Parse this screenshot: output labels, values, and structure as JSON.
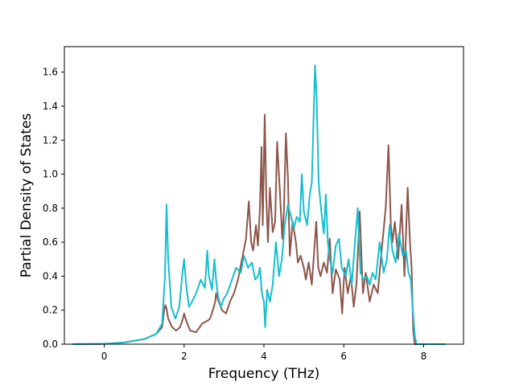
{
  "chart_data": {
    "type": "line",
    "title": "",
    "xlabel": "Frequency (THz)",
    "ylabel": "Partial Density of States",
    "xlim": [
      -1.0,
      9.0
    ],
    "ylim": [
      0.0,
      1.75
    ],
    "xticks": [
      0,
      2,
      4,
      6,
      8
    ],
    "xtick_labels": [
      "0",
      "2",
      "4",
      "6",
      "8"
    ],
    "yticks": [
      0.0,
      0.2,
      0.4,
      0.6,
      0.8,
      1.0,
      1.2,
      1.4,
      1.6
    ],
    "ytick_labels": [
      "0.0",
      "0.2",
      "0.4",
      "0.6",
      "0.8",
      "1.0",
      "1.2",
      "1.4",
      "1.6"
    ],
    "grid": false,
    "legend": "none",
    "series": [
      {
        "color": "#8c564b",
        "x": [
          -0.8,
          0.0,
          0.5,
          1.0,
          1.3,
          1.45,
          1.5,
          1.53,
          1.56,
          1.6,
          1.7,
          1.8,
          1.9,
          1.97,
          2.0,
          2.05,
          2.15,
          2.3,
          2.45,
          2.6,
          2.65,
          2.72,
          2.78,
          2.8,
          2.85,
          2.95,
          3.05,
          3.15,
          3.25,
          3.35,
          3.45,
          3.55,
          3.62,
          3.68,
          3.73,
          3.8,
          3.85,
          3.9,
          3.94,
          3.97,
          4.02,
          4.06,
          4.1,
          4.15,
          4.22,
          4.28,
          4.33,
          4.4,
          4.46,
          4.5,
          4.55,
          4.6,
          4.65,
          4.72,
          4.8,
          4.85,
          4.92,
          5.0,
          5.05,
          5.12,
          5.2,
          5.26,
          5.31,
          5.36,
          5.42,
          5.5,
          5.58,
          5.65,
          5.72,
          5.8,
          5.9,
          5.96,
          6.02,
          6.1,
          6.18,
          6.25,
          6.32,
          6.4,
          6.48,
          6.55,
          6.65,
          6.75,
          6.85,
          6.95,
          7.05,
          7.12,
          7.18,
          7.22,
          7.28,
          7.36,
          7.45,
          7.52,
          7.6,
          7.66,
          7.7,
          7.74,
          7.78,
          7.82,
          8.0,
          8.55
        ],
        "y": [
          0.0,
          0.002,
          0.01,
          0.03,
          0.06,
          0.1,
          0.2,
          0.23,
          0.21,
          0.15,
          0.1,
          0.08,
          0.1,
          0.15,
          0.18,
          0.14,
          0.08,
          0.07,
          0.12,
          0.14,
          0.15,
          0.2,
          0.25,
          0.3,
          0.26,
          0.2,
          0.18,
          0.25,
          0.3,
          0.38,
          0.5,
          0.62,
          0.84,
          0.6,
          0.55,
          0.7,
          0.58,
          0.8,
          1.16,
          0.7,
          1.35,
          0.85,
          0.6,
          0.92,
          0.66,
          0.72,
          1.19,
          0.9,
          0.62,
          0.78,
          1.24,
          0.98,
          0.52,
          0.72,
          0.6,
          0.48,
          0.52,
          0.45,
          0.38,
          0.48,
          0.35,
          0.55,
          0.72,
          0.45,
          0.4,
          0.48,
          0.42,
          0.62,
          0.3,
          0.44,
          0.38,
          0.18,
          0.45,
          0.3,
          0.4,
          0.22,
          0.36,
          0.78,
          0.3,
          0.42,
          0.25,
          0.35,
          0.3,
          0.55,
          0.8,
          1.17,
          0.7,
          0.6,
          0.72,
          0.5,
          0.82,
          0.4,
          0.92,
          0.6,
          0.45,
          0.08,
          0.0,
          0.0,
          0.0,
          0.0
        ]
      },
      {
        "color": "#17becf",
        "x": [
          -0.8,
          0.0,
          0.5,
          1.0,
          1.3,
          1.45,
          1.52,
          1.56,
          1.6,
          1.68,
          1.78,
          1.88,
          1.95,
          2.0,
          2.05,
          2.12,
          2.2,
          2.3,
          2.42,
          2.52,
          2.58,
          2.62,
          2.7,
          2.76,
          2.8,
          2.85,
          2.92,
          3.0,
          3.08,
          3.2,
          3.3,
          3.42,
          3.5,
          3.6,
          3.7,
          3.78,
          3.85,
          3.9,
          3.95,
          4.0,
          4.03,
          4.08,
          4.15,
          4.22,
          4.3,
          4.38,
          4.45,
          4.52,
          4.6,
          4.68,
          4.75,
          4.82,
          4.9,
          4.95,
          5.0,
          5.08,
          5.15,
          5.2,
          5.24,
          5.28,
          5.32,
          5.37,
          5.43,
          5.5,
          5.55,
          5.6,
          5.65,
          5.72,
          5.8,
          5.88,
          5.95,
          6.05,
          6.12,
          6.2,
          6.28,
          6.35,
          6.42,
          6.5,
          6.58,
          6.65,
          6.72,
          6.8,
          6.9,
          7.0,
          7.08,
          7.15,
          7.22,
          7.3,
          7.38,
          7.48,
          7.56,
          7.62,
          7.68,
          7.73,
          7.78,
          7.82,
          8.0,
          8.55
        ],
        "y": [
          0.0,
          0.002,
          0.01,
          0.03,
          0.06,
          0.12,
          0.4,
          0.82,
          0.5,
          0.22,
          0.15,
          0.22,
          0.4,
          0.5,
          0.35,
          0.22,
          0.25,
          0.3,
          0.38,
          0.33,
          0.55,
          0.4,
          0.32,
          0.5,
          0.38,
          0.28,
          0.22,
          0.27,
          0.3,
          0.38,
          0.45,
          0.42,
          0.52,
          0.45,
          0.48,
          0.38,
          0.4,
          0.45,
          0.3,
          0.25,
          0.1,
          0.32,
          0.25,
          0.35,
          0.6,
          0.4,
          0.5,
          0.7,
          0.82,
          0.75,
          0.68,
          0.75,
          0.72,
          1.0,
          0.78,
          0.7,
          0.88,
          0.95,
          1.3,
          1.64,
          1.45,
          0.95,
          0.8,
          0.65,
          0.88,
          0.6,
          0.5,
          0.42,
          0.58,
          0.62,
          0.45,
          0.4,
          0.5,
          0.35,
          0.6,
          0.8,
          0.42,
          0.38,
          0.4,
          0.35,
          0.42,
          0.38,
          0.6,
          0.42,
          0.5,
          0.7,
          0.55,
          0.48,
          0.65,
          0.52,
          0.55,
          0.42,
          0.38,
          0.2,
          0.05,
          0.0,
          0.0,
          0.0
        ]
      }
    ]
  }
}
